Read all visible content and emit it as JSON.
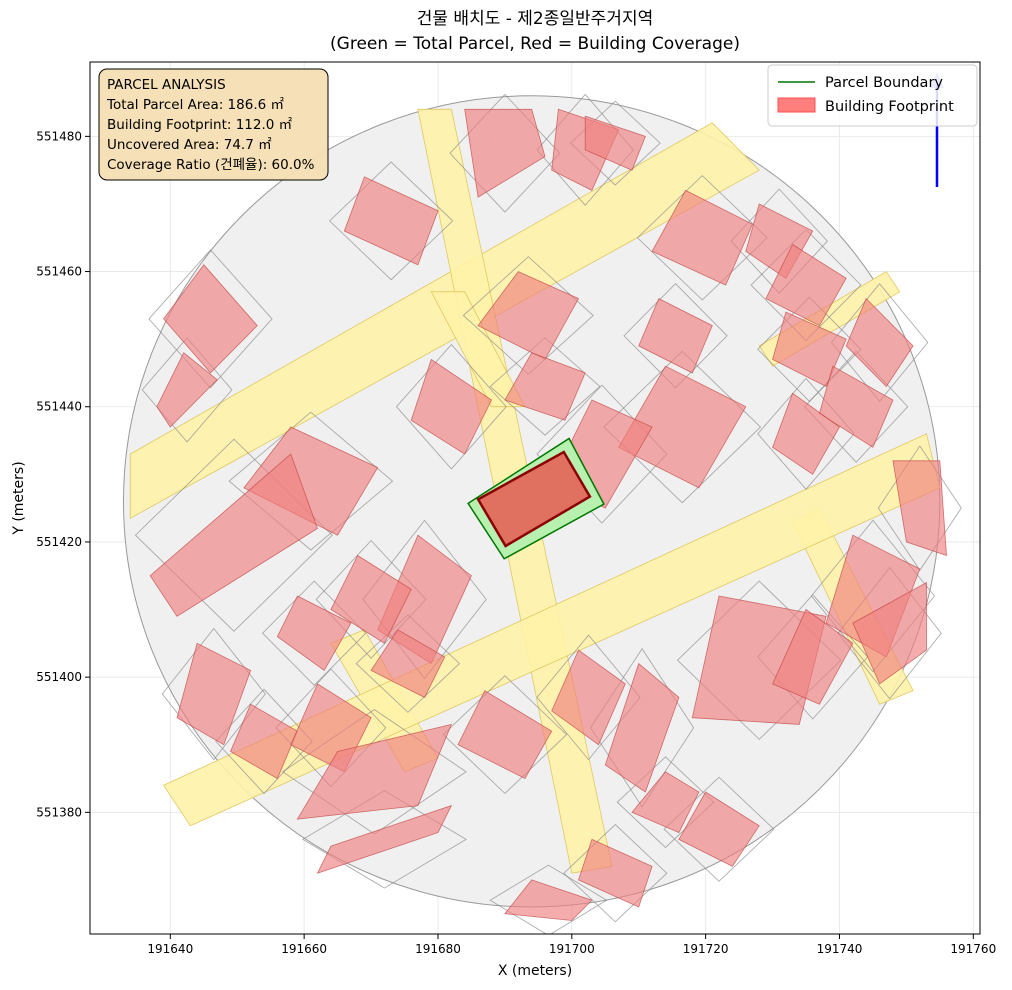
{
  "chart_data": {
    "type": "map",
    "title_line1": "건물 배치도 - 제2종일반주거지역",
    "title_line2": "(Green = Total Parcel, Red = Building Coverage)",
    "xlabel": "X (meters)",
    "ylabel": "Y (meters)",
    "xlim": [
      191628,
      191761
    ],
    "ylim": [
      551362,
      551491
    ],
    "x_ticks": [
      191640,
      191660,
      191680,
      191700,
      191720,
      191740,
      191760
    ],
    "y_ticks": [
      551380,
      551400,
      551420,
      551440,
      551460,
      551480
    ],
    "grid": true,
    "legend_position": "top-right",
    "legend": [
      {
        "label": "Parcel Boundary",
        "kind": "line",
        "color": "#007700"
      },
      {
        "label": "Building Footprint",
        "kind": "patch",
        "color": "#ff7f7f"
      }
    ],
    "info_box": {
      "title": "PARCEL ANALYSIS",
      "lines": [
        "Total Parcel Area: 186.6 ㎡",
        "Building Footprint: 112.0 ㎡",
        "Uncovered Area: 74.7 ㎡",
        "Coverage Ratio (건폐율): 60.0%"
      ]
    },
    "target_parcel": {
      "outline": [
        [
          191684.5,
          551425.7
        ],
        [
          191699.6,
          551435.3
        ],
        [
          191704.8,
          551425.6
        ],
        [
          191689.9,
          551417.5
        ]
      ],
      "building": [
        [
          191686,
          551426.3
        ],
        [
          191698.8,
          551433.3
        ],
        [
          191702.7,
          551426.7
        ],
        [
          191690.1,
          551419.4
        ]
      ]
    },
    "roads": [
      [
        [
          191634,
          551433
        ],
        [
          191721,
          551482
        ],
        [
          191728,
          551475
        ],
        [
          191634,
          551423.5
        ]
      ],
      [
        [
          191677,
          551484
        ],
        [
          191682,
          551484
        ],
        [
          191706,
          551372
        ],
        [
          191700,
          551371
        ]
      ],
      [
        [
          191679,
          551457
        ],
        [
          191684,
          551457
        ],
        [
          191693,
          551440
        ],
        [
          191688,
          551440
        ]
      ],
      [
        [
          191664,
          551405
        ],
        [
          191669,
          551407
        ],
        [
          191680,
          551388
        ],
        [
          191675,
          551386
        ]
      ],
      [
        [
          191728,
          551449
        ],
        [
          191747,
          551460
        ],
        [
          191749,
          551457
        ],
        [
          191730,
          551446
        ]
      ],
      [
        [
          191733,
          551423
        ],
        [
          191737,
          551425
        ],
        [
          191751,
          551398
        ],
        [
          191746,
          551396
        ]
      ]
    ],
    "road_band_lower": [
      [
        191639,
        551384
      ],
      [
        191753,
        551436
      ],
      [
        191755,
        551428
      ],
      [
        191643,
        551378
      ]
    ],
    "site_circle_center": [
      191694,
      551426
    ],
    "site_circle_radius": [
      61,
      60
    ],
    "buildings": [
      [
        [
          191669,
          551474
        ],
        [
          191680,
          551469
        ],
        [
          191677,
          551461
        ],
        [
          191666,
          551466
        ]
      ],
      [
        [
          191684,
          551484
        ],
        [
          191694,
          551484
        ],
        [
          191696,
          551477
        ],
        [
          191686,
          551471
        ]
      ],
      [
        [
          191698,
          551484
        ],
        [
          191707,
          551481
        ],
        [
          191703,
          551472
        ],
        [
          191697,
          551475
        ]
      ],
      [
        [
          191702,
          551483
        ],
        [
          191711,
          551480
        ],
        [
          191709,
          551475
        ],
        [
          191702,
          551478
        ]
      ],
      [
        [
          191717,
          551472
        ],
        [
          191727,
          551467
        ],
        [
          191723,
          551458
        ],
        [
          191712,
          551463
        ]
      ],
      [
        [
          191728,
          551470
        ],
        [
          191736,
          551466
        ],
        [
          191732,
          551459
        ],
        [
          191726,
          551463
        ]
      ],
      [
        [
          191733,
          551464
        ],
        [
          191741,
          551459
        ],
        [
          191737,
          551452
        ],
        [
          191729,
          551456
        ]
      ],
      [
        [
          191713,
          551456
        ],
        [
          191721,
          551452
        ],
        [
          191718,
          551445
        ],
        [
          191710,
          551449
        ]
      ],
      [
        [
          191732,
          551454
        ],
        [
          191741,
          551450
        ],
        [
          191738,
          551443
        ],
        [
          191730,
          551447
        ]
      ],
      [
        [
          191744,
          551456
        ],
        [
          191751,
          551449
        ],
        [
          191747,
          551443
        ],
        [
          191741,
          551449
        ]
      ],
      [
        [
          191739,
          551446
        ],
        [
          191748,
          551441
        ],
        [
          191745,
          551434
        ],
        [
          191737,
          551439
        ]
      ],
      [
        [
          191733,
          551442
        ],
        [
          191740,
          551437
        ],
        [
          191736,
          551430
        ],
        [
          191730,
          551434
        ]
      ],
      [
        [
          191714,
          551446
        ],
        [
          191726,
          551440
        ],
        [
          191719,
          551428
        ],
        [
          191707,
          551434
        ]
      ],
      [
        [
          191703,
          551441
        ],
        [
          191712,
          551437
        ],
        [
          191705,
          551425
        ],
        [
          191697,
          551429
        ]
      ],
      [
        [
          191692,
          551460
        ],
        [
          191701,
          551456
        ],
        [
          191696,
          551447
        ],
        [
          191686,
          551452
        ]
      ],
      [
        [
          191694,
          551448
        ],
        [
          191702,
          551445
        ],
        [
          191699,
          551438
        ],
        [
          191690,
          551441
        ]
      ],
      [
        [
          191679,
          551447
        ],
        [
          191688,
          551441
        ],
        [
          191684,
          551433
        ],
        [
          191676,
          551438
        ]
      ],
      [
        [
          191658,
          551437
        ],
        [
          191671,
          551431
        ],
        [
          191665,
          551421
        ],
        [
          191651,
          551428
        ]
      ],
      [
        [
          191637,
          551415
        ],
        [
          191658,
          551433
        ],
        [
          191662,
          551422
        ],
        [
          191641,
          551409
        ]
      ],
      [
        [
          191645,
          551461
        ],
        [
          191653,
          551452
        ],
        [
          191646,
          551445
        ],
        [
          191639,
          551453
        ]
      ],
      [
        [
          191642,
          551448
        ],
        [
          191647,
          551444
        ],
        [
          191640,
          551437
        ],
        [
          191638,
          551440
        ]
      ],
      [
        [
          191677,
          551421
        ],
        [
          191685,
          551415
        ],
        [
          191679,
          551402
        ],
        [
          191671,
          551407
        ]
      ],
      [
        [
          191668,
          551418
        ],
        [
          191676,
          551413
        ],
        [
          191672,
          551405
        ],
        [
          191664,
          551410
        ]
      ],
      [
        [
          191659,
          551412
        ],
        [
          191667,
          551408
        ],
        [
          191663,
          551401
        ],
        [
          191656,
          551406
        ]
      ],
      [
        [
          191674,
          551407
        ],
        [
          191681,
          551403
        ],
        [
          191678,
          551397
        ],
        [
          191670,
          551401
        ]
      ],
      [
        [
          191644,
          551405
        ],
        [
          191652,
          551401
        ],
        [
          191648,
          551390
        ],
        [
          191641,
          551394
        ]
      ],
      [
        [
          191652,
          551396
        ],
        [
          191659,
          551392
        ],
        [
          191656,
          551385
        ],
        [
          191649,
          551389
        ]
      ],
      [
        [
          191662,
          551399
        ],
        [
          191670,
          551394
        ],
        [
          191666,
          551386
        ],
        [
          191658,
          551390
        ]
      ],
      [
        [
          191665,
          551389
        ],
        [
          191682,
          551393
        ],
        [
          191677,
          551381
        ],
        [
          191659,
          551379
        ]
      ],
      [
        [
          191664,
          551375
        ],
        [
          191682,
          551381
        ],
        [
          191680,
          551377
        ],
        [
          191662,
          551371
        ]
      ],
      [
        [
          191687,
          551398
        ],
        [
          191697,
          551392
        ],
        [
          191693,
          551385
        ],
        [
          191683,
          551390
        ]
      ],
      [
        [
          191701,
          551404
        ],
        [
          191708,
          551399
        ],
        [
          191704,
          551390
        ],
        [
          191697,
          551395
        ]
      ],
      [
        [
          191710,
          551402
        ],
        [
          191716,
          551397
        ],
        [
          191711,
          551383
        ],
        [
          191705,
          551387
        ]
      ],
      [
        [
          191714,
          551386
        ],
        [
          191719,
          551383
        ],
        [
          191716,
          551377
        ],
        [
          191709,
          551380
        ]
      ],
      [
        [
          191720,
          551383
        ],
        [
          191728,
          551378
        ],
        [
          191724,
          551372
        ],
        [
          191716,
          551376
        ]
      ],
      [
        [
          191703,
          551376
        ],
        [
          191712,
          551372
        ],
        [
          191710,
          551366
        ],
        [
          191701,
          551370
        ]
      ],
      [
        [
          191694,
          551370
        ],
        [
          191703,
          551367
        ],
        [
          191700,
          551364
        ],
        [
          191690,
          551365
        ]
      ],
      [
        [
          191722,
          551412
        ],
        [
          191738,
          551409
        ],
        [
          191734,
          551393
        ],
        [
          191718,
          551394
        ]
      ],
      [
        [
          191735,
          551410
        ],
        [
          191742,
          551405
        ],
        [
          191737,
          551396
        ],
        [
          191730,
          551399
        ]
      ],
      [
        [
          191742,
          551421
        ],
        [
          191752,
          551416
        ],
        [
          191747,
          551403
        ],
        [
          191738,
          551408
        ]
      ],
      [
        [
          191753,
          551414
        ],
        [
          191753,
          551404
        ],
        [
          191746,
          551399
        ],
        [
          191742,
          551408
        ]
      ],
      [
        [
          191755,
          551432
        ],
        [
          191756,
          551418
        ],
        [
          191750,
          551420
        ],
        [
          191748,
          551432
        ]
      ]
    ]
  }
}
